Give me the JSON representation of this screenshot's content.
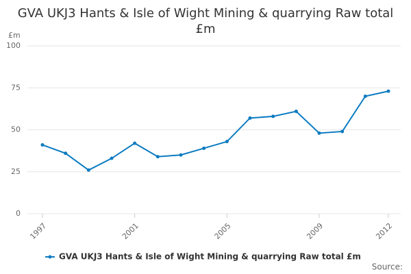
{
  "chart_data": {
    "type": "line",
    "title": "GVA UKJ3 Hants & Isle of Wight Mining & quarrying Raw total £m",
    "y_label": "£m",
    "source": "Source:",
    "x": [
      1997,
      1998,
      1999,
      2000,
      2001,
      2002,
      2003,
      2004,
      2005,
      2006,
      2007,
      2008,
      2009,
      2010,
      2011,
      2012
    ],
    "series": [
      {
        "name": "GVA UKJ3 Hants & Isle of Wight Mining & quarrying Raw total £m",
        "color": "#0b7bc1",
        "values": [
          41,
          36,
          26,
          33,
          42,
          34,
          35,
          39,
          43,
          57,
          58,
          61,
          48,
          49,
          70,
          73
        ]
      }
    ],
    "xlim": [
      1997,
      2012
    ],
    "xticks": [
      1997,
      2001,
      2005,
      2009,
      2012
    ],
    "ylim": [
      0,
      100
    ],
    "yticks": [
      0,
      25,
      50,
      75,
      100
    ],
    "grid": true
  }
}
